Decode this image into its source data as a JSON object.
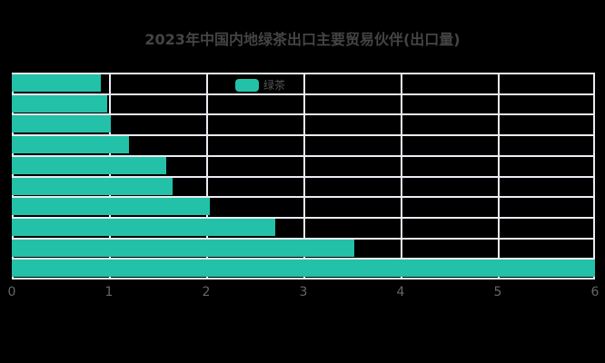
{
  "chart_data": {
    "type": "bar",
    "orientation": "horizontal",
    "title": "2023年中国内地绿茶出口主要贸易伙伴(出口量)",
    "legend": [
      "绿茶"
    ],
    "legend_position": "top-center",
    "xlabel": "",
    "ylabel": "",
    "xlim": [
      0,
      6
    ],
    "x_ticks": [
      "0",
      "1",
      "2",
      "3",
      "4",
      "5",
      "6"
    ],
    "grid": true,
    "series": [
      {
        "name": "绿茶",
        "color": "#23c1a8",
        "values": [
          0.92,
          0.98,
          1.02,
          1.21,
          1.59,
          1.65,
          2.04,
          2.71,
          3.52,
          6.0
        ]
      }
    ],
    "categories": [
      "",
      "",
      "",
      "",
      "",
      "",
      "",
      "",
      "",
      ""
    ]
  },
  "title": "2023年中国内地绿茶出口主要贸易伙伴(出口量)",
  "legend": {
    "label": "绿茶"
  }
}
